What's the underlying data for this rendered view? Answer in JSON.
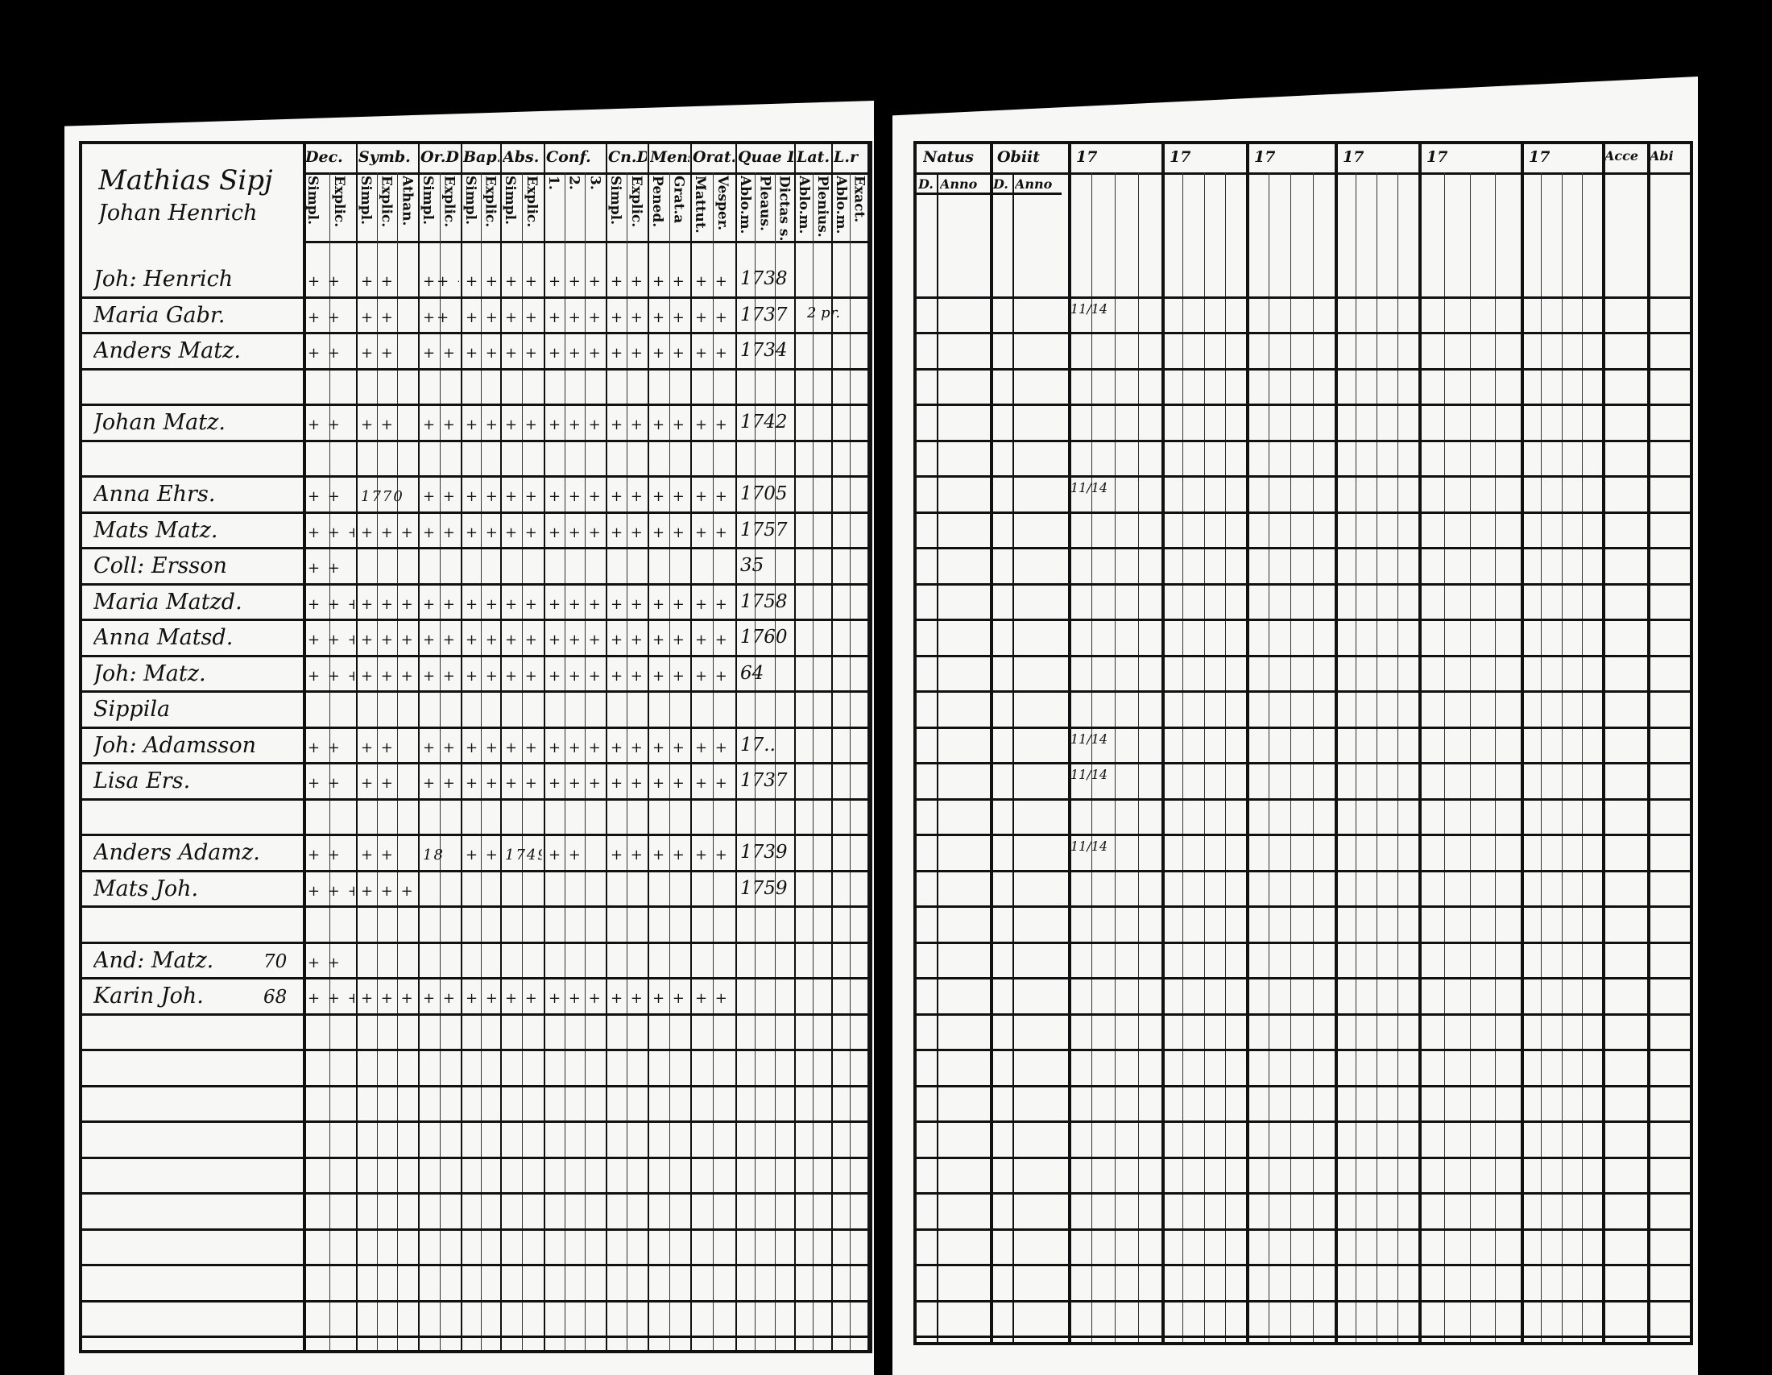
{
  "left_page": {
    "title_lines": [
      "Mathias Sipj",
      "Johan Henrich"
    ],
    "columns": [
      {
        "head": "Dec.",
        "subs": [
          "Simpl.",
          "Explic."
        ]
      },
      {
        "head": "Symb.",
        "subs": [
          "Simpl.",
          "Explic.",
          "Athan."
        ]
      },
      {
        "head": "Or.D",
        "subs": [
          "Simpl.",
          "Explic."
        ]
      },
      {
        "head": "Bap.",
        "subs": [
          "Simpl.",
          "Explic."
        ]
      },
      {
        "head": "Abs.",
        "subs": [
          "Simpl.",
          "Explic."
        ]
      },
      {
        "head": "Conf.",
        "subs": [
          "1.",
          "2.",
          "3."
        ]
      },
      {
        "head": "Cn.D",
        "subs": [
          "Simpl.",
          "Explic."
        ]
      },
      {
        "head": "Mens.",
        "subs": [
          "Pened.",
          "Grat.a"
        ]
      },
      {
        "head": "Orat.",
        "subs": [
          "Mattut.",
          "Vesper."
        ]
      },
      {
        "head": "Quae L.",
        "subs": [
          "Ablo.m.",
          "Pleaus.",
          "Dictas s."
        ]
      },
      {
        "head": "Lat.",
        "subs": [
          "Ablo.m.",
          "Plenius."
        ]
      },
      {
        "head": "L.r",
        "subs": [
          "Ablo.m.",
          "Exact."
        ]
      }
    ],
    "rows": [
      {
        "name": "Joh: Henrich",
        "marks": [
          "+ +",
          "+ +",
          "++ ++",
          "+ +",
          "+ +",
          "+ + +",
          "+ +",
          "+ +",
          "+ +"
        ],
        "year": "1738"
      },
      {
        "name": "Maria Gabr.",
        "marks": [
          "+ +",
          "+ +",
          "++",
          "+ +",
          "+ +",
          "+ + +",
          "+ +",
          "+ +",
          "+ +"
        ],
        "year": "1737",
        "extra": "2 pr."
      },
      {
        "name": "Anders Matz.",
        "marks": [
          "+ +",
          "+ +",
          "+ +",
          "+ +",
          "+ +",
          "+ + +",
          "+ +",
          "+ +",
          "+ +"
        ],
        "year": "1734"
      },
      {
        "name": "",
        "marks": [],
        "year": ""
      },
      {
        "name": "Johan Matz.",
        "marks": [
          "+ +",
          "+ +",
          "+ +",
          "+ +",
          "+ +",
          "+ + +",
          "+ +",
          "+ +",
          "+ +"
        ],
        "year": "1742"
      },
      {
        "name": "",
        "marks": [],
        "year": ""
      },
      {
        "name": "Anna Ehrs.",
        "marks": [
          "+ +",
          "1770",
          "+ +",
          "+ +",
          "+ +",
          "+ + +",
          "+ +",
          "+ +",
          "+ +"
        ],
        "year": "1705"
      },
      {
        "name": "Mats Matz.",
        "marks": [
          "+ + +",
          "+ + +",
          "+ + +",
          "+ + +",
          "+ + +",
          "+ + +",
          "+ +",
          "+ +",
          "+ +"
        ],
        "year": "1757"
      },
      {
        "name": "Coll: Ersson",
        "marks": [
          "+ +"
        ],
        "year": "35"
      },
      {
        "name": "Maria Matzd.",
        "marks": [
          "+ + +",
          "+ + +",
          "+ + +",
          "+ + +",
          "+ + +",
          "+ + +",
          "+ + +",
          "+ +",
          "+ +"
        ],
        "year": "1758"
      },
      {
        "name": "Anna Matsd.",
        "marks": [
          "+ + +",
          "+ + +",
          "+ + +",
          "+ + +",
          "+ + +",
          "+ + +",
          "+ + +",
          "+ +",
          "+ +"
        ],
        "year": "1760"
      },
      {
        "name": "Joh: Matz.",
        "marks": [
          "+ + +",
          "+ + +",
          "+ + +",
          "+ +",
          "+ +",
          "+ + +",
          "+ + +",
          "+ +",
          "+ +"
        ],
        "year": "64"
      },
      {
        "name": "Sippila",
        "marks": [],
        "year": ""
      },
      {
        "name": "Joh: Adamsson",
        "marks": [
          "+ +",
          "+ +",
          "+ +",
          "+ +",
          "+ +",
          "+ + +",
          "+ +",
          "+ +",
          "+ +"
        ],
        "year": "17.."
      },
      {
        "name": "Lisa Ers.",
        "marks": [
          "+ +",
          "+ +",
          "+ +",
          "+ +",
          "+ +",
          "+ + +",
          "+ +",
          "+ +",
          "+ +"
        ],
        "year": "1737"
      },
      {
        "name": "",
        "marks": [],
        "year": ""
      },
      {
        "name": "Anders Adamz.",
        "marks": [
          "+ +",
          "+ +",
          "18",
          "+ +",
          "1749",
          "+ +",
          "+ +",
          "+ +",
          "+ +"
        ],
        "year": "1739"
      },
      {
        "name": "Mats Joh.",
        "marks": [
          "+ + +",
          "+ + +"
        ],
        "year": "1759"
      },
      {
        "name": "",
        "marks": [],
        "year": ""
      },
      {
        "name": "And: Matz.",
        "age": "70",
        "marks": [
          "+ +"
        ],
        "year": ""
      },
      {
        "name": "Karin Joh.",
        "age": "68",
        "marks": [
          "+ + +",
          "+ + +",
          "+ + +",
          "+ +",
          "+ +",
          "+ + +",
          "+ +",
          "+ +",
          "+ +"
        ],
        "year": ""
      },
      {
        "name": "",
        "marks": [],
        "year": ""
      },
      {
        "name": "",
        "marks": [],
        "year": ""
      },
      {
        "name": "",
        "marks": [],
        "year": ""
      },
      {
        "name": "",
        "marks": [],
        "year": ""
      },
      {
        "name": "",
        "marks": [],
        "year": ""
      },
      {
        "name": "",
        "marks": [],
        "year": ""
      },
      {
        "name": "",
        "marks": [],
        "year": ""
      },
      {
        "name": "",
        "marks": [],
        "year": ""
      },
      {
        "name": "",
        "marks": [],
        "year": ""
      }
    ]
  },
  "right_page": {
    "natus": {
      "head": "Natus",
      "subs": [
        "D.",
        "Anno"
      ]
    },
    "obiit": {
      "head": "Obiit",
      "subs": [
        "D.",
        "Anno"
      ]
    },
    "year_groups": [
      "17",
      "17",
      "17",
      "17",
      "17",
      "17"
    ],
    "acce": "Acce",
    "abi": "Abi",
    "entries": [
      {
        "row": 1,
        "text": "11/14"
      },
      {
        "row": 6,
        "text": "11/14"
      },
      {
        "row": 13,
        "text": "11/14"
      },
      {
        "row": 14,
        "text": "11/14"
      },
      {
        "row": 16,
        "text": "11/14"
      }
    ]
  }
}
